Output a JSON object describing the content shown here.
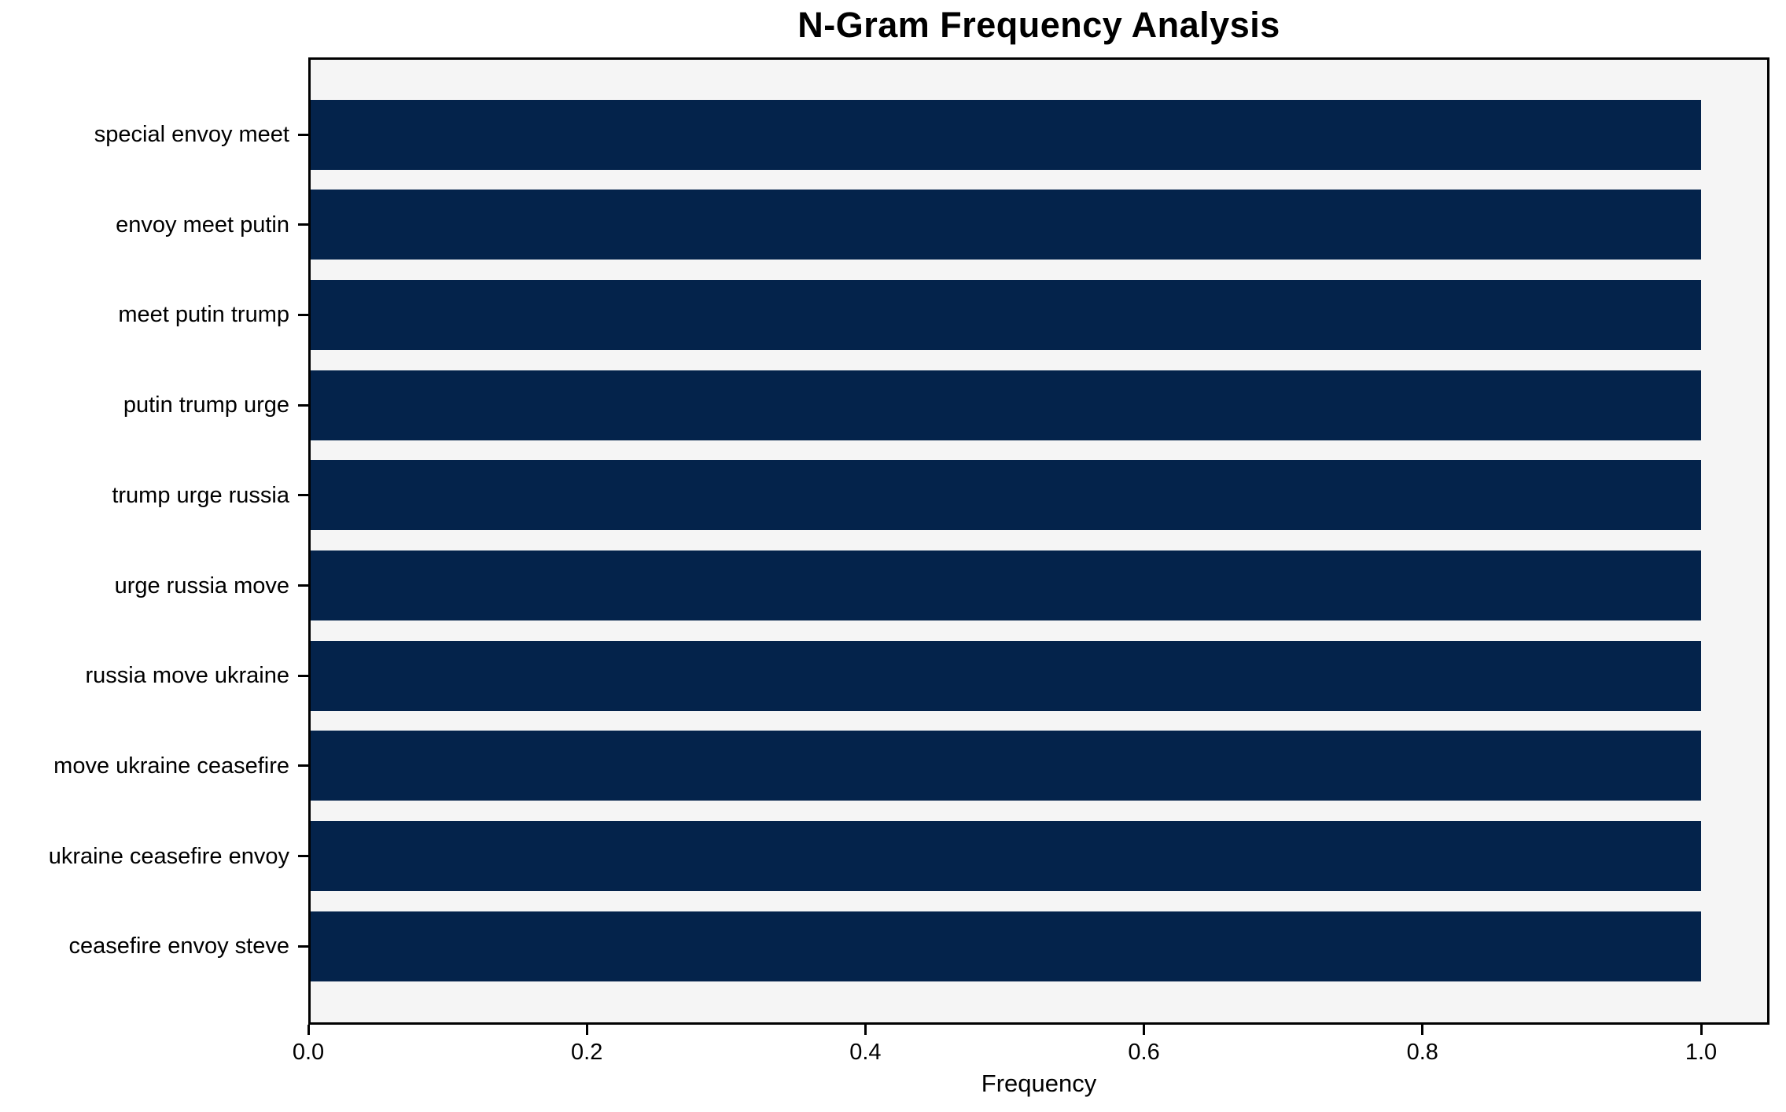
{
  "chart_data": {
    "type": "bar",
    "orientation": "horizontal",
    "title": "N-Gram Frequency Analysis",
    "xlabel": "Frequency",
    "ylabel": "",
    "categories": [
      "special envoy meet",
      "envoy meet putin",
      "meet putin trump",
      "putin trump urge",
      "trump urge russia",
      "urge russia move",
      "russia move ukraine",
      "move ukraine ceasefire",
      "ukraine ceasefire envoy",
      "ceasefire envoy steve"
    ],
    "values": [
      1.0,
      1.0,
      1.0,
      1.0,
      1.0,
      1.0,
      1.0,
      1.0,
      1.0,
      1.0
    ],
    "xlim": [
      0.0,
      1.05
    ],
    "xticks": [
      0.0,
      0.2,
      0.4,
      0.6,
      0.8,
      1.0
    ],
    "xtick_labels": [
      "0.0",
      "0.2",
      "0.4",
      "0.6",
      "0.8",
      "1.0"
    ],
    "grid": false,
    "legend": null,
    "colors": {
      "bar": "#04234b",
      "plot_background": "#f5f5f5",
      "figure_background": "#ffffff",
      "spine": "#000000",
      "text": "#000000"
    }
  }
}
